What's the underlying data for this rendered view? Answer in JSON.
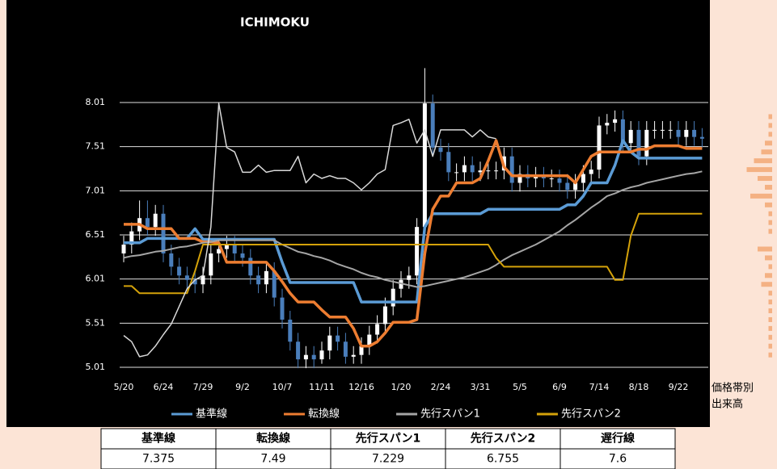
{
  "chart_data": {
    "type": "ichimoku",
    "title": "ICHIMOKU",
    "categories": [
      "5/20",
      null,
      null,
      null,
      null,
      "6/24",
      null,
      null,
      null,
      null,
      "7/29",
      null,
      null,
      null,
      null,
      "9/2",
      null,
      null,
      null,
      null,
      "10/7",
      null,
      null,
      null,
      null,
      "11/11",
      null,
      null,
      null,
      null,
      "12/16",
      null,
      null,
      null,
      null,
      "1/20",
      null,
      null,
      null,
      null,
      "2/24",
      null,
      null,
      null,
      null,
      "3/31",
      null,
      null,
      null,
      null,
      "5/5",
      null,
      null,
      null,
      null,
      "6/9",
      null,
      null,
      null,
      null,
      "7/14",
      null,
      null,
      null,
      null,
      "8/18",
      null,
      null,
      null,
      null,
      "9/22",
      null,
      null,
      null
    ],
    "ylim": [
      5.01,
      8.01
    ],
    "yticks": [
      5.01,
      5.51,
      6.01,
      6.51,
      7.01,
      7.51,
      8.01
    ],
    "grid": true,
    "candles": {
      "up_color": "#ffffff",
      "down_color": "#4a7ebb",
      "open": [
        6.3,
        6.4,
        6.55,
        6.7,
        6.6,
        6.75,
        6.3,
        6.15,
        6.05,
        6.0,
        5.95,
        6.05,
        6.3,
        6.35,
        6.4,
        6.3,
        6.25,
        6.05,
        5.95,
        6.1,
        5.8,
        5.55,
        5.3,
        5.1,
        5.15,
        5.1,
        5.2,
        5.37,
        5.3,
        5.13,
        5.15,
        5.25,
        5.38,
        5.5,
        5.7,
        5.9,
        6.0,
        6.05,
        6.6,
        8.0,
        7.5,
        7.45,
        7.22,
        7.22,
        7.3,
        7.22,
        7.24,
        7.24,
        7.24,
        7.4,
        7.1,
        7.2,
        7.15,
        7.18,
        7.15,
        7.15,
        7.1,
        7.02,
        7.1,
        7.2,
        7.25,
        7.75,
        7.78,
        7.82,
        7.55,
        7.7,
        7.4,
        7.7,
        7.7,
        7.7,
        7.7,
        7.62,
        7.7,
        7.62
      ],
      "high": [
        6.5,
        6.65,
        6.9,
        6.9,
        6.85,
        6.85,
        6.4,
        6.25,
        6.15,
        6.1,
        6.15,
        6.4,
        6.45,
        6.5,
        6.5,
        6.4,
        6.35,
        6.15,
        6.2,
        6.2,
        5.9,
        5.65,
        5.4,
        5.25,
        5.25,
        5.3,
        5.47,
        5.47,
        5.4,
        5.25,
        5.35,
        5.48,
        5.6,
        5.8,
        6.0,
        6.1,
        6.15,
        6.7,
        8.4,
        8.1,
        7.6,
        7.55,
        7.32,
        7.4,
        7.4,
        7.34,
        7.34,
        7.34,
        7.5,
        7.5,
        7.3,
        7.3,
        7.28,
        7.28,
        7.25,
        7.25,
        7.2,
        7.2,
        7.3,
        7.35,
        7.85,
        7.88,
        7.92,
        7.92,
        7.8,
        7.8,
        7.8,
        7.8,
        7.8,
        7.8,
        7.8,
        7.8,
        7.8,
        7.72
      ],
      "low": [
        6.2,
        6.3,
        6.45,
        6.5,
        6.5,
        6.2,
        6.05,
        5.95,
        5.9,
        5.85,
        5.85,
        5.95,
        6.2,
        6.25,
        6.2,
        6.15,
        5.95,
        5.85,
        5.85,
        5.7,
        5.45,
        5.2,
        5.0,
        5.0,
        5.0,
        5.05,
        5.1,
        5.2,
        5.05,
        5.05,
        5.05,
        5.15,
        5.28,
        5.4,
        5.6,
        5.8,
        5.9,
        5.95,
        6.5,
        7.4,
        7.35,
        7.12,
        7.12,
        7.12,
        7.12,
        7.12,
        7.14,
        7.14,
        7.14,
        7.0,
        7.0,
        7.05,
        7.05,
        7.05,
        7.05,
        7.0,
        6.92,
        6.92,
        7.0,
        7.1,
        7.15,
        7.65,
        7.68,
        7.45,
        7.45,
        7.3,
        7.3,
        7.6,
        7.6,
        7.6,
        7.52,
        7.52,
        7.52,
        7.5
      ],
      "close": [
        6.4,
        6.55,
        6.7,
        6.6,
        6.75,
        6.3,
        6.15,
        6.05,
        6.0,
        5.95,
        6.05,
        6.3,
        6.35,
        6.4,
        6.3,
        6.25,
        6.05,
        5.95,
        6.1,
        5.8,
        5.55,
        5.3,
        5.1,
        5.15,
        5.1,
        5.2,
        5.37,
        5.3,
        5.13,
        5.15,
        5.25,
        5.38,
        5.5,
        5.7,
        5.9,
        6.0,
        6.05,
        6.6,
        8.0,
        7.5,
        7.45,
        7.22,
        7.22,
        7.3,
        7.22,
        7.24,
        7.24,
        7.24,
        7.4,
        7.1,
        7.2,
        7.15,
        7.18,
        7.15,
        7.15,
        7.1,
        7.02,
        7.1,
        7.2,
        7.25,
        7.75,
        7.78,
        7.82,
        7.55,
        7.7,
        7.4,
        7.7,
        7.7,
        7.7,
        7.7,
        7.62,
        7.7,
        7.62,
        7.6
      ]
    },
    "series": [
      {
        "name": "基準線",
        "color": "#5b9bd5",
        "width": 3.5,
        "values": [
          6.42,
          6.42,
          6.42,
          6.47,
          6.47,
          6.47,
          6.47,
          6.47,
          6.47,
          6.58,
          6.46,
          6.46,
          6.46,
          6.46,
          6.46,
          6.46,
          6.46,
          6.46,
          6.46,
          6.46,
          6.2,
          5.97,
          5.97,
          5.97,
          5.97,
          5.97,
          5.97,
          5.97,
          5.97,
          5.97,
          5.75,
          5.75,
          5.75,
          5.75,
          5.75,
          5.75,
          5.75,
          5.75,
          6.6,
          6.75,
          6.75,
          6.75,
          6.75,
          6.75,
          6.75,
          6.75,
          6.8,
          6.8,
          6.8,
          6.8,
          6.8,
          6.8,
          6.8,
          6.8,
          6.8,
          6.8,
          6.85,
          6.85,
          6.95,
          7.1,
          7.1,
          7.1,
          7.3,
          7.58,
          7.45,
          7.38,
          7.38,
          7.38,
          7.38,
          7.38,
          7.38,
          7.38,
          7.38,
          7.38
        ]
      },
      {
        "name": "転換線",
        "color": "#ed7d31",
        "width": 3.5,
        "values": [
          6.63,
          6.63,
          6.63,
          6.58,
          6.58,
          6.58,
          6.58,
          6.47,
          6.47,
          6.47,
          6.43,
          6.43,
          6.42,
          6.2,
          6.2,
          6.2,
          6.2,
          6.2,
          6.2,
          6.1,
          5.98,
          5.85,
          5.75,
          5.75,
          5.75,
          5.66,
          5.58,
          5.58,
          5.58,
          5.45,
          5.25,
          5.25,
          5.3,
          5.4,
          5.52,
          5.52,
          5.52,
          5.55,
          6.3,
          6.8,
          6.95,
          6.95,
          7.1,
          7.1,
          7.1,
          7.15,
          7.35,
          7.58,
          7.28,
          7.18,
          7.18,
          7.18,
          7.18,
          7.18,
          7.18,
          7.18,
          7.18,
          7.1,
          7.25,
          7.4,
          7.45,
          7.45,
          7.45,
          7.45,
          7.45,
          7.48,
          7.48,
          7.52,
          7.52,
          7.52,
          7.52,
          7.49,
          7.49,
          7.49
        ]
      },
      {
        "name": "先行スパン1",
        "color": "#a5a5a5",
        "width": 2,
        "values": [
          6.25,
          6.27,
          6.28,
          6.3,
          6.32,
          6.33,
          6.35,
          6.37,
          6.38,
          6.4,
          6.42,
          6.43,
          6.45,
          6.45,
          6.45,
          6.45,
          6.45,
          6.45,
          6.45,
          6.45,
          6.4,
          6.36,
          6.32,
          6.3,
          6.27,
          6.25,
          6.22,
          6.18,
          6.15,
          6.12,
          6.08,
          6.05,
          6.03,
          6.0,
          5.98,
          5.96,
          5.94,
          5.92,
          5.93,
          5.95,
          5.97,
          5.99,
          6.01,
          6.03,
          6.06,
          6.09,
          6.12,
          6.17,
          6.23,
          6.28,
          6.32,
          6.36,
          6.4,
          6.45,
          6.5,
          6.55,
          6.62,
          6.68,
          6.75,
          6.82,
          6.88,
          6.95,
          6.98,
          7.02,
          7.05,
          7.07,
          7.1,
          7.12,
          7.14,
          7.16,
          7.18,
          7.2,
          7.21,
          7.23
        ]
      },
      {
        "name": "先行スパン2",
        "color": "#d4a20a",
        "width": 2,
        "values": [
          5.93,
          5.93,
          5.85,
          5.85,
          5.85,
          5.85,
          5.85,
          5.85,
          5.85,
          6.1,
          6.4,
          6.4,
          6.4,
          6.4,
          6.4,
          6.4,
          6.4,
          6.4,
          6.4,
          6.4,
          6.4,
          6.4,
          6.4,
          6.4,
          6.4,
          6.4,
          6.4,
          6.4,
          6.4,
          6.4,
          6.4,
          6.4,
          6.4,
          6.4,
          6.4,
          6.4,
          6.4,
          6.4,
          6.4,
          6.4,
          6.4,
          6.4,
          6.4,
          6.4,
          6.4,
          6.4,
          6.4,
          6.25,
          6.15,
          6.15,
          6.15,
          6.15,
          6.15,
          6.15,
          6.15,
          6.15,
          6.15,
          6.15,
          6.15,
          6.15,
          6.15,
          6.15,
          6.0,
          6.0,
          6.5,
          6.75,
          6.75,
          6.75,
          6.75,
          6.75,
          6.75,
          6.75,
          6.75,
          6.75
        ]
      },
      {
        "name": "遅行線",
        "color": "#d9d9d9",
        "width": 1.5,
        "legend": false,
        "values": [
          5.37,
          5.3,
          5.13,
          5.15,
          5.25,
          5.38,
          5.5,
          5.7,
          5.9,
          6.0,
          6.05,
          6.6,
          8.0,
          7.5,
          7.45,
          7.22,
          7.22,
          7.3,
          7.22,
          7.24,
          7.24,
          7.24,
          7.4,
          7.1,
          7.2,
          7.15,
          7.18,
          7.15,
          7.15,
          7.1,
          7.02,
          7.1,
          7.2,
          7.25,
          7.75,
          7.78,
          7.82,
          7.55,
          7.7,
          7.4,
          7.7,
          7.7,
          7.7,
          7.7,
          7.62,
          7.7,
          7.62,
          7.6,
          null,
          null,
          null,
          null,
          null,
          null,
          null,
          null,
          null,
          null,
          null,
          null,
          null,
          null,
          null,
          null,
          null,
          null,
          null,
          null,
          null,
          null,
          null,
          null,
          null,
          null
        ]
      }
    ],
    "volume_profile": {
      "labels": [
        "価格帯別",
        "出来高"
      ],
      "color": "#f4b183",
      "prices": [
        7.85,
        7.75,
        7.65,
        7.55,
        7.45,
        7.35,
        7.25,
        7.15,
        7.05,
        6.95,
        6.85,
        6.75,
        6.65,
        6.55,
        6.35,
        6.25,
        6.15,
        6.05,
        5.95,
        5.85,
        5.75,
        5.65,
        5.55,
        5.45,
        5.35,
        5.25,
        5.15
      ],
      "volumes": [
        1,
        1,
        1,
        2,
        3,
        5,
        7,
        4,
        2,
        6,
        2,
        1,
        1,
        1,
        4,
        2,
        1,
        2,
        3,
        1,
        1,
        1,
        1,
        1,
        1,
        1,
        1
      ]
    }
  },
  "table": {
    "headers": [
      "基準線",
      "転換線",
      "先行スパン1",
      "先行スパン2",
      "遅行線"
    ],
    "values": [
      7.375,
      7.49,
      7.229,
      6.755,
      7.6
    ]
  }
}
